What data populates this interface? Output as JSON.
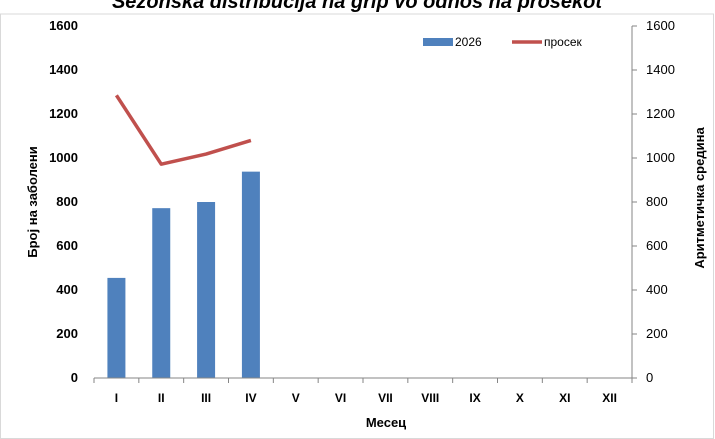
{
  "chart_data": {
    "type": "bar",
    "title": "",
    "title_visible_fragment": "Sezonska distribucija na grip vo odnos na prosekot",
    "xlabel": "Месец",
    "ylabel": "Број на заболени",
    "ylabel_right": "Аритметичка средина",
    "categories": [
      "I",
      "II",
      "III",
      "IV",
      "V",
      "VI",
      "VII",
      "VIII",
      "IX",
      "X",
      "XI",
      "XII"
    ],
    "ylim": [
      0,
      1600
    ],
    "yticks": [
      0,
      200,
      400,
      600,
      800,
      1000,
      1200,
      1400,
      1600
    ],
    "y2lim": [
      0,
      1600
    ],
    "y2ticks": [
      0,
      200,
      400,
      600,
      800,
      1000,
      1200,
      1400,
      1600
    ],
    "legend_position": "top-right",
    "grid": false,
    "series": [
      {
        "name": "2026",
        "type": "bar",
        "color": "#4f81bd",
        "axis": "left",
        "values": [
          455,
          772,
          800,
          938,
          null,
          null,
          null,
          null,
          null,
          null,
          null,
          null
        ]
      },
      {
        "name": "просек",
        "type": "line",
        "color": "#c0504d",
        "axis": "right",
        "values": [
          1285,
          972,
          1018,
          1080,
          null,
          null,
          null,
          null,
          null,
          null,
          null,
          null
        ]
      }
    ]
  }
}
